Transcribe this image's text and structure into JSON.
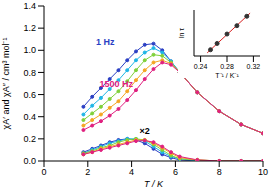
{
  "chart_data": [
    {
      "type": "line",
      "x_label": "T / K",
      "y_label": "χA′ and χA″ / cm³ mol⁻¹",
      "x": [
        1.8,
        2.2,
        2.6,
        3.0,
        3.4,
        3.8,
        4.2,
        4.6,
        5.0,
        5.4,
        5.8,
        6.2,
        7,
        8,
        9,
        10
      ],
      "xlim": [
        0,
        10
      ],
      "xticks": [
        0,
        2,
        4,
        6,
        8,
        10
      ],
      "ylim": [
        0,
        1.4
      ],
      "yticks": [
        {
          "value": 0,
          "label": "0.0"
        },
        {
          "value": 0.2,
          "label": "0.2"
        },
        {
          "value": 0.4,
          "label": "0.4"
        },
        {
          "value": 0.6,
          "label": "0.6"
        },
        {
          "value": 0.8,
          "label": "0.8"
        },
        {
          "value": 1.0,
          "label": "1.0"
        },
        {
          "value": 1.2,
          "label": "1.2"
        },
        {
          "value": 1.4,
          "label": "1.4"
        }
      ],
      "marker": "circle",
      "series": [
        {
          "color": "#2a3fc4",
          "values": [
            0.49,
            0.58,
            0.66,
            0.74,
            0.82,
            0.91,
            0.99,
            1.05,
            1.06,
            1.0,
            0.9,
            0.8,
            0.62,
            0.45,
            0.33,
            0.25
          ]
        },
        {
          "color": "#1fb6e6",
          "values": [
            0.42,
            0.5,
            0.57,
            0.65,
            0.73,
            0.82,
            0.91,
            0.98,
            1.02,
            0.98,
            0.9,
            0.8,
            0.62,
            0.45,
            0.33,
            0.25
          ]
        },
        {
          "color": "#7fd13a",
          "values": [
            0.37,
            0.43,
            0.49,
            0.56,
            0.63,
            0.72,
            0.82,
            0.91,
            0.96,
            0.95,
            0.89,
            0.8,
            0.62,
            0.45,
            0.33,
            0.25
          ]
        },
        {
          "color": "#f5a623",
          "values": [
            0.32,
            0.37,
            0.42,
            0.48,
            0.54,
            0.63,
            0.73,
            0.82,
            0.89,
            0.91,
            0.88,
            0.8,
            0.62,
            0.45,
            0.33,
            0.25
          ]
        },
        {
          "color": "#e0207f",
          "values": [
            0.28,
            0.32,
            0.36,
            0.41,
            0.47,
            0.55,
            0.64,
            0.74,
            0.83,
            0.89,
            0.87,
            0.8,
            0.62,
            0.45,
            0.33,
            0.25
          ]
        },
        {
          "color": "#2a3fc4",
          "values": [
            0.08,
            0.11,
            0.14,
            0.17,
            0.19,
            0.2,
            0.19,
            0.16,
            0.11,
            0.06,
            0.03,
            0.01,
            0,
            0,
            0,
            0
          ]
        },
        {
          "color": "#1fb6e6",
          "values": [
            0.07,
            0.1,
            0.13,
            0.16,
            0.18,
            0.2,
            0.2,
            0.18,
            0.13,
            0.08,
            0.04,
            0.02,
            0,
            0,
            0,
            0
          ]
        },
        {
          "color": "#7fd13a",
          "values": [
            0.07,
            0.09,
            0.12,
            0.14,
            0.17,
            0.19,
            0.2,
            0.19,
            0.15,
            0.1,
            0.05,
            0.02,
            0.01,
            0,
            0,
            0
          ]
        },
        {
          "color": "#f5a623",
          "values": [
            0.06,
            0.08,
            0.11,
            0.13,
            0.15,
            0.17,
            0.19,
            0.19,
            0.16,
            0.12,
            0.07,
            0.03,
            0.01,
            0,
            0,
            0
          ]
        },
        {
          "color": "#e0207f",
          "values": [
            0.06,
            0.08,
            0.1,
            0.12,
            0.14,
            0.16,
            0.18,
            0.185,
            0.17,
            0.13,
            0.08,
            0.04,
            0.01,
            0,
            0,
            0
          ]
        }
      ],
      "annotations": [
        {
          "text": "1 Hz",
          "x": 2.8,
          "y": 1.08,
          "color": "#2a3fc4"
        },
        {
          "text": "1500 Hz",
          "x": 3.3,
          "y": 0.7,
          "color": "#e0207f"
        },
        {
          "text": "×2",
          "x": 4.6,
          "y": 0.27,
          "color": "#000000"
        }
      ]
    },
    {
      "type": "scatter",
      "x_label": "T⁻¹ / K⁻¹",
      "y_label": "ln τ",
      "xlim": [
        0.23,
        0.33
      ],
      "xticks": [
        0.24,
        0.28,
        0.32
      ],
      "ylim": [
        -9.2,
        -4.8
      ],
      "tick_labels": "x",
      "series": [
        {
          "type": "scatter",
          "color": "#d62020",
          "marker": "circle",
          "x": [
            0.255,
            0.265,
            0.28,
            0.295,
            0.31
          ],
          "values": [
            -8.6,
            -8.0,
            -7.1,
            -6.3,
            -5.4
          ]
        },
        {
          "type": "line",
          "color": "#d62020",
          "x": [
            0.25,
            0.315
          ],
          "values": [
            -8.9,
            -5.1
          ]
        }
      ]
    }
  ]
}
